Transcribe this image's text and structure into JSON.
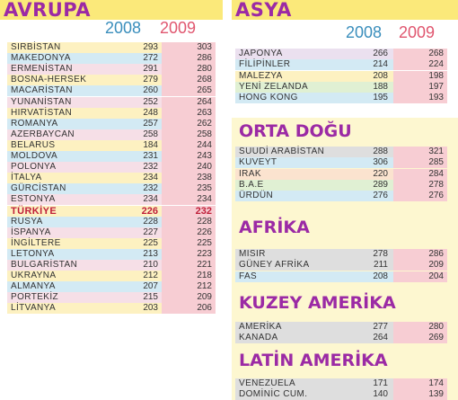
{
  "europe": {
    "title": "AVRUPA",
    "year1": "2008",
    "year2": "2009",
    "rows": [
      {
        "name": "SIRBİSTAN",
        "v2008": "293",
        "v2009": "303"
      },
      {
        "name": "MAKEDONYA",
        "v2008": "272",
        "v2009": "286"
      },
      {
        "name": "ERMENİSTAN",
        "v2008": "291",
        "v2009": "280"
      },
      {
        "name": "BOSNA-HERSEK",
        "v2008": "279",
        "v2009": "268"
      },
      {
        "name": "MACARİSTAN",
        "v2008": "260",
        "v2009": "265"
      },
      {
        "name": "YUNANİSTAN",
        "v2008": "252",
        "v2009": "264"
      },
      {
        "name": "HIRVATİSTAN",
        "v2008": "248",
        "v2009": "263"
      },
      {
        "name": "ROMANYA",
        "v2008": "257",
        "v2009": "262"
      },
      {
        "name": "AZERBAYCAN",
        "v2008": "258",
        "v2009": "258"
      },
      {
        "name": "BELARUS",
        "v2008": "184",
        "v2009": "244"
      },
      {
        "name": "MOLDOVA",
        "v2008": "231",
        "v2009": "243"
      },
      {
        "name": "POLONYA",
        "v2008": "232",
        "v2009": "240"
      },
      {
        "name": "İTALYA",
        "v2008": "234",
        "v2009": "238"
      },
      {
        "name": "GÜRCİSTAN",
        "v2008": "232",
        "v2009": "235"
      },
      {
        "name": "ESTONYA",
        "v2008": "234",
        "v2009": "234"
      },
      {
        "name": "TÜRKİYE",
        "v2008": "226",
        "v2009": "232",
        "highlight": true
      },
      {
        "name": "RUSYA",
        "v2008": "228",
        "v2009": "228"
      },
      {
        "name": "İSPANYA",
        "v2008": "227",
        "v2009": "226"
      },
      {
        "name": "İNGİLTERE",
        "v2008": "225",
        "v2009": "225"
      },
      {
        "name": "LETONYA",
        "v2008": "213",
        "v2009": "223"
      },
      {
        "name": "BULGARİSTAN",
        "v2008": "210",
        "v2009": "221"
      },
      {
        "name": "UKRAYNA",
        "v2008": "212",
        "v2009": "218"
      },
      {
        "name": "ALMANYA",
        "v2008": "207",
        "v2009": "212"
      },
      {
        "name": "PORTEKİZ",
        "v2008": "215",
        "v2009": "209"
      },
      {
        "name": "LİTVANYA",
        "v2008": "203",
        "v2009": "206"
      }
    ]
  },
  "asia": {
    "title": "ASYA",
    "year1": "2008",
    "year2": "2009",
    "rows": [
      {
        "name": "JAPONYA",
        "v2008": "266",
        "v2009": "268"
      },
      {
        "name": "FİLİPİNLER",
        "v2008": "214",
        "v2009": "224"
      },
      {
        "name": "MALEZYA",
        "v2008": "208",
        "v2009": "198"
      },
      {
        "name": "YENİ ZELANDA",
        "v2008": "188",
        "v2009": "197"
      },
      {
        "name": "HONG KONG",
        "v2008": "195",
        "v2009": "193"
      }
    ]
  },
  "middle_east": {
    "title": "ORTA DOĞU",
    "rows": [
      {
        "name": "SUUDİ ARABİSTAN",
        "v2008": "288",
        "v2009": "321"
      },
      {
        "name": "KUVEYT",
        "v2008": "306",
        "v2009": "285"
      },
      {
        "name": "IRAK",
        "v2008": "220",
        "v2009": "284"
      },
      {
        "name": "B.A.E",
        "v2008": "289",
        "v2009": "278"
      },
      {
        "name": "ÜRDÜN",
        "v2008": "276",
        "v2009": "276"
      }
    ]
  },
  "africa": {
    "title": "AFRİKA",
    "rows": [
      {
        "name": "MISIR",
        "v2008": "278",
        "v2009": "286"
      },
      {
        "name": "GÜNEY AFRİKA",
        "v2008": "211",
        "v2009": "209"
      },
      {
        "name": "FAS",
        "v2008": "208",
        "v2009": "204"
      }
    ]
  },
  "north_america": {
    "title": "KUZEY AMERİKA",
    "rows": [
      {
        "name": "AMERİKA",
        "v2008": "277",
        "v2009": "280"
      },
      {
        "name": "KANADA",
        "v2008": "264",
        "v2009": "269"
      }
    ]
  },
  "latin_america": {
    "title": "LATİN AMERİKA",
    "rows": [
      {
        "name": "VENEZUELA",
        "v2008": "171",
        "v2009": "174"
      },
      {
        "name": "DOMİNİC CUM.",
        "v2008": "140",
        "v2009": "139"
      }
    ]
  },
  "colors": {
    "title": "#9b2aa5",
    "banner": "#fbe97a",
    "panel": "#fdf7d0",
    "year2008": "#3a8ebc",
    "year2009": "#e0566f",
    "highlight": "#c0203a",
    "col2009_bg": "#f7cdd3"
  },
  "palettes": {
    "europe": [
      "#fdf1c1",
      "#d3eaf4",
      "#f6dfe7"
    ],
    "asia": [
      "#ebe0ef",
      "#d3eaf4",
      "#fdf1c1",
      "#e0f0d3",
      "#d3eaf4"
    ],
    "middle_east": [
      "#dedede",
      "#d3eaf4",
      "#fbe3cf",
      "#e0f0d3",
      "#d3eaf4"
    ],
    "africa": [
      "#dedede",
      "#dedede",
      "#d3eaf4"
    ],
    "north_america": [
      "#dedede",
      "#dedede"
    ],
    "latin_america": [
      "#dedede",
      "#dedede"
    ]
  }
}
